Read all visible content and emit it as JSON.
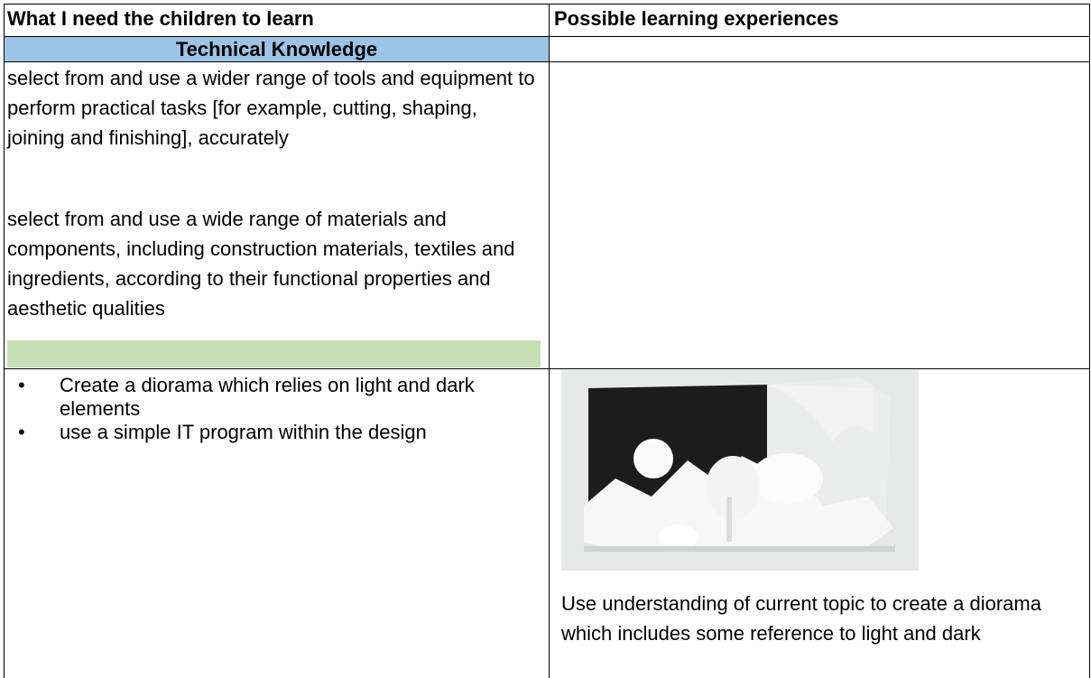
{
  "table": {
    "header": [
      "What I need the children to learn",
      "Possible learning experiences"
    ],
    "section_heading": "Technical Knowledge",
    "objectives": [
      "select from and use a wider range of tools and equipment to perform practical tasks [for example, cutting, shaping, joining and finishing], accurately",
      "select from and use a wide range of materials and components, including construction materials, textiles and ingredients, according to their functional properties and aesthetic qualities"
    ],
    "activities": [
      "Create a diorama which relies on light and dark elements",
      "use a simple IT program within the design"
    ],
    "experience": "Use understanding of current topic to create a diorama which includes some reference to light and dark"
  }
}
